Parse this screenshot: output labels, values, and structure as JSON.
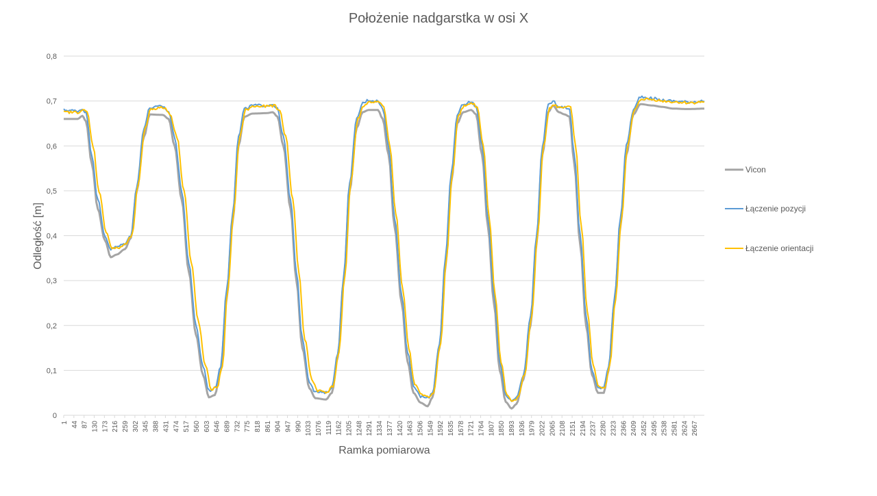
{
  "chart_data": {
    "type": "line",
    "title": "Położenie nadgarstka w osi X",
    "xlabel": "Ramka pomiarowa",
    "ylabel": "Odległość [m]",
    "ylim": [
      0,
      0.8
    ],
    "y_ticks": [
      "0",
      "0,1",
      "0,2",
      "0,3",
      "0,4",
      "0,5",
      "0,6",
      "0,7",
      "0,8"
    ],
    "x_ticks": [
      "1",
      "44",
      "87",
      "130",
      "173",
      "216",
      "259",
      "302",
      "345",
      "388",
      "431",
      "474",
      "517",
      "560",
      "603",
      "646",
      "689",
      "732",
      "775",
      "818",
      "861",
      "904",
      "947",
      "990",
      "1033",
      "1076",
      "1119",
      "1162",
      "1205",
      "1248",
      "1291",
      "1334",
      "1377",
      "1420",
      "1463",
      "1506",
      "1549",
      "1592",
      "1635",
      "1678",
      "1721",
      "1764",
      "1807",
      "1850",
      "1893",
      "1936",
      "1979",
      "2022",
      "2065",
      "2108",
      "2151",
      "2194",
      "2237",
      "2280",
      "2323",
      "2366",
      "2409",
      "2452",
      "2495",
      "2538",
      "2581",
      "2624",
      "2667"
    ],
    "xlim": [
      1,
      2710
    ],
    "grid": true,
    "legend_position": "right",
    "series": [
      {
        "name": "Vicon",
        "color": "#a5a5a5",
        "points": [
          [
            1,
            0.66
          ],
          [
            60,
            0.66
          ],
          [
            80,
            0.667
          ],
          [
            95,
            0.655
          ],
          [
            120,
            0.56
          ],
          [
            145,
            0.46
          ],
          [
            175,
            0.39
          ],
          [
            200,
            0.352
          ],
          [
            225,
            0.358
          ],
          [
            260,
            0.37
          ],
          [
            285,
            0.395
          ],
          [
            310,
            0.5
          ],
          [
            340,
            0.62
          ],
          [
            365,
            0.67
          ],
          [
            420,
            0.669
          ],
          [
            445,
            0.66
          ],
          [
            470,
            0.6
          ],
          [
            500,
            0.48
          ],
          [
            530,
            0.32
          ],
          [
            560,
            0.18
          ],
          [
            590,
            0.09
          ],
          [
            615,
            0.04
          ],
          [
            640,
            0.045
          ],
          [
            665,
            0.1
          ],
          [
            690,
            0.26
          ],
          [
            715,
            0.43
          ],
          [
            740,
            0.6
          ],
          [
            765,
            0.665
          ],
          [
            800,
            0.672
          ],
          [
            860,
            0.673
          ],
          [
            885,
            0.675
          ],
          [
            905,
            0.665
          ],
          [
            930,
            0.6
          ],
          [
            960,
            0.46
          ],
          [
            985,
            0.3
          ],
          [
            1010,
            0.15
          ],
          [
            1040,
            0.06
          ],
          [
            1065,
            0.038
          ],
          [
            1110,
            0.035
          ],
          [
            1135,
            0.05
          ],
          [
            1160,
            0.13
          ],
          [
            1185,
            0.3
          ],
          [
            1210,
            0.5
          ],
          [
            1240,
            0.64
          ],
          [
            1265,
            0.675
          ],
          [
            1290,
            0.68
          ],
          [
            1330,
            0.68
          ],
          [
            1350,
            0.66
          ],
          [
            1375,
            0.58
          ],
          [
            1400,
            0.42
          ],
          [
            1430,
            0.25
          ],
          [
            1455,
            0.12
          ],
          [
            1480,
            0.05
          ],
          [
            1510,
            0.028
          ],
          [
            1540,
            0.02
          ],
          [
            1560,
            0.04
          ],
          [
            1590,
            0.15
          ],
          [
            1615,
            0.33
          ],
          [
            1640,
            0.52
          ],
          [
            1665,
            0.65
          ],
          [
            1690,
            0.675
          ],
          [
            1725,
            0.68
          ],
          [
            1745,
            0.67
          ],
          [
            1770,
            0.58
          ],
          [
            1795,
            0.42
          ],
          [
            1820,
            0.25
          ],
          [
            1845,
            0.1
          ],
          [
            1870,
            0.03
          ],
          [
            1895,
            0.015
          ],
          [
            1915,
            0.025
          ],
          [
            1945,
            0.08
          ],
          [
            1975,
            0.2
          ],
          [
            2000,
            0.38
          ],
          [
            2025,
            0.58
          ],
          [
            2050,
            0.675
          ],
          [
            2070,
            0.69
          ],
          [
            2095,
            0.675
          ],
          [
            2120,
            0.67
          ],
          [
            2140,
            0.665
          ],
          [
            2160,
            0.56
          ],
          [
            2185,
            0.38
          ],
          [
            2210,
            0.2
          ],
          [
            2235,
            0.09
          ],
          [
            2260,
            0.05
          ],
          [
            2285,
            0.05
          ],
          [
            2305,
            0.1
          ],
          [
            2330,
            0.25
          ],
          [
            2355,
            0.42
          ],
          [
            2380,
            0.58
          ],
          [
            2410,
            0.67
          ],
          [
            2440,
            0.693
          ],
          [
            2490,
            0.69
          ],
          [
            2530,
            0.687
          ],
          [
            2580,
            0.683
          ],
          [
            2640,
            0.682
          ],
          [
            2710,
            0.683
          ]
        ]
      },
      {
        "name": "Łączenie pozycji",
        "color": "#5b9bd5",
        "points": [
          [
            1,
            0.68
          ],
          [
            60,
            0.678
          ],
          [
            80,
            0.682
          ],
          [
            95,
            0.675
          ],
          [
            120,
            0.58
          ],
          [
            145,
            0.48
          ],
          [
            175,
            0.4
          ],
          [
            200,
            0.37
          ],
          [
            225,
            0.375
          ],
          [
            260,
            0.382
          ],
          [
            285,
            0.4
          ],
          [
            310,
            0.51
          ],
          [
            340,
            0.64
          ],
          [
            365,
            0.685
          ],
          [
            420,
            0.688
          ],
          [
            445,
            0.676
          ],
          [
            470,
            0.62
          ],
          [
            500,
            0.5
          ],
          [
            530,
            0.34
          ],
          [
            560,
            0.2
          ],
          [
            590,
            0.11
          ],
          [
            615,
            0.055
          ],
          [
            640,
            0.06
          ],
          [
            665,
            0.11
          ],
          [
            690,
            0.28
          ],
          [
            715,
            0.45
          ],
          [
            740,
            0.62
          ],
          [
            765,
            0.682
          ],
          [
            800,
            0.69
          ],
          [
            860,
            0.69
          ],
          [
            885,
            0.693
          ],
          [
            905,
            0.682
          ],
          [
            930,
            0.62
          ],
          [
            960,
            0.48
          ],
          [
            985,
            0.32
          ],
          [
            1010,
            0.17
          ],
          [
            1040,
            0.075
          ],
          [
            1065,
            0.052
          ],
          [
            1110,
            0.05
          ],
          [
            1135,
            0.062
          ],
          [
            1160,
            0.14
          ],
          [
            1185,
            0.31
          ],
          [
            1210,
            0.52
          ],
          [
            1240,
            0.66
          ],
          [
            1265,
            0.695
          ],
          [
            1290,
            0.702
          ],
          [
            1330,
            0.7
          ],
          [
            1350,
            0.682
          ],
          [
            1375,
            0.6
          ],
          [
            1400,
            0.44
          ],
          [
            1430,
            0.27
          ],
          [
            1455,
            0.14
          ],
          [
            1480,
            0.065
          ],
          [
            1510,
            0.042
          ],
          [
            1540,
            0.038
          ],
          [
            1560,
            0.05
          ],
          [
            1590,
            0.16
          ],
          [
            1615,
            0.35
          ],
          [
            1640,
            0.54
          ],
          [
            1665,
            0.67
          ],
          [
            1690,
            0.693
          ],
          [
            1725,
            0.698
          ],
          [
            1745,
            0.688
          ],
          [
            1770,
            0.6
          ],
          [
            1795,
            0.44
          ],
          [
            1820,
            0.27
          ],
          [
            1845,
            0.12
          ],
          [
            1870,
            0.045
          ],
          [
            1895,
            0.032
          ],
          [
            1915,
            0.04
          ],
          [
            1945,
            0.09
          ],
          [
            1975,
            0.22
          ],
          [
            2000,
            0.4
          ],
          [
            2025,
            0.6
          ],
          [
            2050,
            0.69
          ],
          [
            2070,
            0.7
          ],
          [
            2095,
            0.688
          ],
          [
            2120,
            0.686
          ],
          [
            2140,
            0.682
          ],
          [
            2160,
            0.58
          ],
          [
            2185,
            0.4
          ],
          [
            2210,
            0.22
          ],
          [
            2235,
            0.1
          ],
          [
            2260,
            0.06
          ],
          [
            2285,
            0.062
          ],
          [
            2305,
            0.11
          ],
          [
            2330,
            0.26
          ],
          [
            2355,
            0.44
          ],
          [
            2380,
            0.6
          ],
          [
            2410,
            0.68
          ],
          [
            2440,
            0.71
          ],
          [
            2490,
            0.706
          ],
          [
            2530,
            0.702
          ],
          [
            2580,
            0.7
          ],
          [
            2640,
            0.698
          ],
          [
            2710,
            0.7
          ]
        ]
      },
      {
        "name": "Łączenie orientacji",
        "color": "#ffc000",
        "points": [
          [
            1,
            0.675
          ],
          [
            60,
            0.675
          ],
          [
            80,
            0.68
          ],
          [
            100,
            0.675
          ],
          [
            125,
            0.6
          ],
          [
            150,
            0.5
          ],
          [
            180,
            0.41
          ],
          [
            205,
            0.372
          ],
          [
            230,
            0.372
          ],
          [
            260,
            0.38
          ],
          [
            290,
            0.4
          ],
          [
            315,
            0.51
          ],
          [
            345,
            0.64
          ],
          [
            370,
            0.683
          ],
          [
            425,
            0.685
          ],
          [
            450,
            0.672
          ],
          [
            480,
            0.62
          ],
          [
            510,
            0.5
          ],
          [
            540,
            0.34
          ],
          [
            570,
            0.21
          ],
          [
            600,
            0.11
          ],
          [
            625,
            0.058
          ],
          [
            650,
            0.062
          ],
          [
            672,
            0.11
          ],
          [
            695,
            0.28
          ],
          [
            720,
            0.45
          ],
          [
            745,
            0.62
          ],
          [
            770,
            0.68
          ],
          [
            805,
            0.688
          ],
          [
            865,
            0.688
          ],
          [
            890,
            0.69
          ],
          [
            915,
            0.678
          ],
          [
            940,
            0.62
          ],
          [
            970,
            0.48
          ],
          [
            995,
            0.32
          ],
          [
            1020,
            0.17
          ],
          [
            1050,
            0.08
          ],
          [
            1075,
            0.055
          ],
          [
            1115,
            0.052
          ],
          [
            1140,
            0.065
          ],
          [
            1165,
            0.14
          ],
          [
            1190,
            0.31
          ],
          [
            1215,
            0.52
          ],
          [
            1245,
            0.66
          ],
          [
            1270,
            0.69
          ],
          [
            1295,
            0.698
          ],
          [
            1335,
            0.697
          ],
          [
            1355,
            0.685
          ],
          [
            1380,
            0.6
          ],
          [
            1405,
            0.45
          ],
          [
            1435,
            0.28
          ],
          [
            1460,
            0.15
          ],
          [
            1485,
            0.07
          ],
          [
            1515,
            0.045
          ],
          [
            1545,
            0.04
          ],
          [
            1565,
            0.052
          ],
          [
            1595,
            0.16
          ],
          [
            1620,
            0.35
          ],
          [
            1645,
            0.54
          ],
          [
            1670,
            0.67
          ],
          [
            1695,
            0.69
          ],
          [
            1730,
            0.695
          ],
          [
            1750,
            0.685
          ],
          [
            1775,
            0.6
          ],
          [
            1800,
            0.44
          ],
          [
            1825,
            0.27
          ],
          [
            1850,
            0.12
          ],
          [
            1875,
            0.045
          ],
          [
            1900,
            0.03
          ],
          [
            1920,
            0.038
          ],
          [
            1950,
            0.09
          ],
          [
            1980,
            0.22
          ],
          [
            2005,
            0.4
          ],
          [
            2030,
            0.6
          ],
          [
            2055,
            0.685
          ],
          [
            2075,
            0.69
          ],
          [
            2100,
            0.685
          ],
          [
            2125,
            0.688
          ],
          [
            2145,
            0.685
          ],
          [
            2165,
            0.6
          ],
          [
            2190,
            0.42
          ],
          [
            2215,
            0.23
          ],
          [
            2240,
            0.11
          ],
          [
            2265,
            0.062
          ],
          [
            2290,
            0.062
          ],
          [
            2310,
            0.11
          ],
          [
            2335,
            0.26
          ],
          [
            2360,
            0.44
          ],
          [
            2385,
            0.6
          ],
          [
            2415,
            0.68
          ],
          [
            2445,
            0.705
          ],
          [
            2495,
            0.703
          ],
          [
            2535,
            0.7
          ],
          [
            2585,
            0.698
          ],
          [
            2645,
            0.696
          ],
          [
            2710,
            0.698
          ]
        ]
      }
    ]
  }
}
